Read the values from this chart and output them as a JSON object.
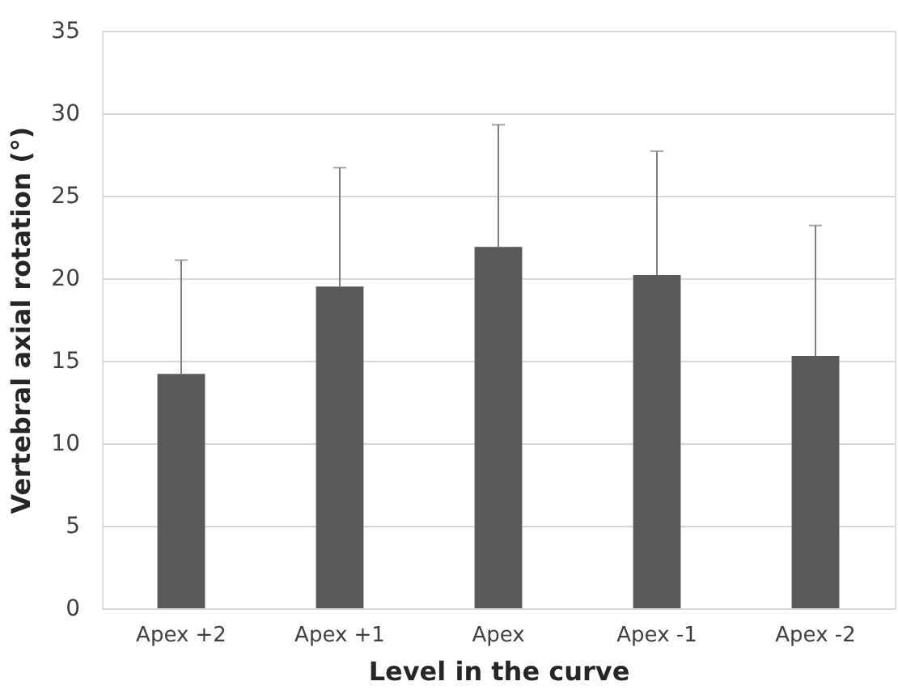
{
  "chart_data": {
    "type": "bar",
    "xlabel": "Level in the curve",
    "ylabel": "Vertebral axial rotation (°)",
    "categories": [
      "Apex +2",
      "Apex +1",
      "Apex",
      "Apex -1",
      "Apex -2"
    ],
    "values": [
      14.2,
      19.5,
      21.9,
      20.2,
      15.3
    ],
    "errors": [
      [
        14.2,
        21.1
      ],
      [
        19.5,
        26.7
      ],
      [
        21.9,
        29.3
      ],
      [
        20.2,
        27.7
      ],
      [
        15.3,
        23.2
      ]
    ],
    "color": "#595959",
    "ylim": [
      0,
      35
    ],
    "yticks": [
      0,
      5,
      10,
      15,
      20,
      25,
      30,
      35
    ],
    "grid": "y"
  }
}
